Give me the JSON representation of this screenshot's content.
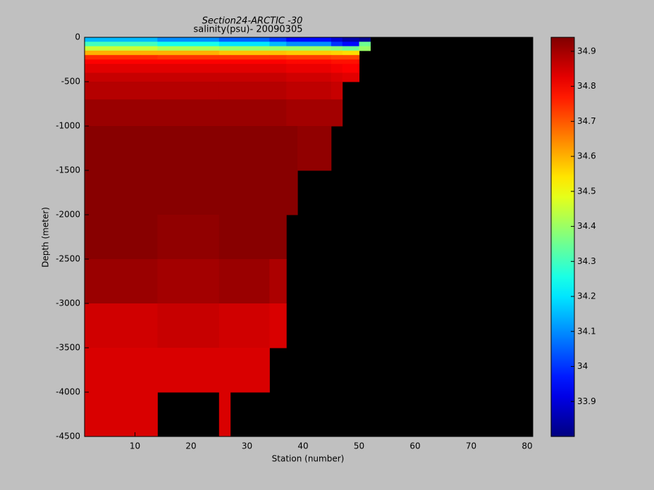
{
  "chart_data": {
    "type": "heatmap",
    "title": "Section24-ARCTIC  -30",
    "subtitle": "salinity(psu)- 20090305",
    "x_label": "Station (number)",
    "y_label": "Depth (meter)",
    "x_edges": [
      1,
      11,
      14,
      25,
      27,
      34,
      37,
      39,
      45,
      47,
      50,
      52,
      81
    ],
    "y_edges": [
      0,
      -50,
      -100,
      -150,
      -200,
      -250,
      -300,
      -400,
      -500,
      -700,
      -1000,
      -1500,
      -2000,
      -2500,
      -3000,
      -3500,
      -4000,
      -4500
    ],
    "values": [
      [
        34.15,
        34.15,
        34.1,
        34.05,
        34.05,
        34.0,
        33.95,
        33.95,
        33.9,
        33.85,
        33.82,
        null
      ],
      [
        34.3,
        34.3,
        34.25,
        34.2,
        34.2,
        34.15,
        34.1,
        34.1,
        34.0,
        33.95,
        34.35,
        null
      ],
      [
        34.45,
        34.45,
        34.42,
        34.4,
        34.4,
        34.4,
        34.4,
        34.4,
        34.38,
        34.35,
        34.4,
        null
      ],
      [
        34.6,
        34.6,
        34.6,
        34.58,
        34.58,
        34.58,
        34.57,
        34.57,
        34.56,
        34.55,
        null,
        null
      ],
      [
        34.75,
        34.75,
        34.74,
        34.74,
        34.74,
        34.74,
        34.73,
        34.73,
        34.72,
        34.72,
        null,
        null
      ],
      [
        34.8,
        34.8,
        34.8,
        34.8,
        34.8,
        34.8,
        34.79,
        34.79,
        34.78,
        34.78,
        null,
        null
      ],
      [
        34.83,
        34.83,
        34.83,
        34.83,
        34.83,
        34.83,
        34.82,
        34.82,
        34.81,
        34.8,
        null,
        null
      ],
      [
        34.86,
        34.86,
        34.86,
        34.86,
        34.86,
        34.86,
        34.85,
        34.85,
        34.84,
        34.83,
        null,
        null
      ],
      [
        34.88,
        34.88,
        34.88,
        34.88,
        34.88,
        34.88,
        34.87,
        34.87,
        34.86,
        null,
        null,
        null
      ],
      [
        34.91,
        34.91,
        34.91,
        34.91,
        34.91,
        34.91,
        34.9,
        34.9,
        34.9,
        null,
        null,
        null
      ],
      [
        34.93,
        34.93,
        34.93,
        34.93,
        34.93,
        34.93,
        34.93,
        34.92,
        null,
        null,
        null,
        null
      ],
      [
        34.93,
        34.93,
        34.93,
        34.93,
        34.93,
        34.93,
        34.93,
        null,
        null,
        null,
        null,
        null
      ],
      [
        34.93,
        34.93,
        34.92,
        34.93,
        34.93,
        34.93,
        null,
        null,
        null,
        null,
        null,
        null
      ],
      [
        34.91,
        34.91,
        34.9,
        34.91,
        34.91,
        34.89,
        null,
        null,
        null,
        null,
        null,
        null
      ],
      [
        34.85,
        34.85,
        34.86,
        34.85,
        34.85,
        34.84,
        null,
        null,
        null,
        null,
        null,
        null
      ],
      [
        34.84,
        34.84,
        34.84,
        34.84,
        34.84,
        null,
        null,
        null,
        null,
        null,
        null,
        null
      ],
      [
        34.84,
        34.84,
        null,
        34.84,
        null,
        null,
        null,
        null,
        null,
        null,
        null,
        null
      ]
    ],
    "xlim": [
      1,
      81
    ],
    "xticks": [
      10,
      20,
      30,
      40,
      50,
      60,
      70,
      80
    ],
    "ylim": [
      -4500,
      0
    ],
    "yticks": [
      0,
      -500,
      -1000,
      -1500,
      -2000,
      -2500,
      -3000,
      -3500,
      -4000,
      -4500
    ],
    "colorbar": {
      "lim": [
        33.8,
        34.94
      ],
      "ticks": [
        33.9,
        34,
        34.1,
        34.2,
        34.3,
        34.4,
        34.5,
        34.6,
        34.7,
        34.8,
        34.9
      ]
    }
  }
}
